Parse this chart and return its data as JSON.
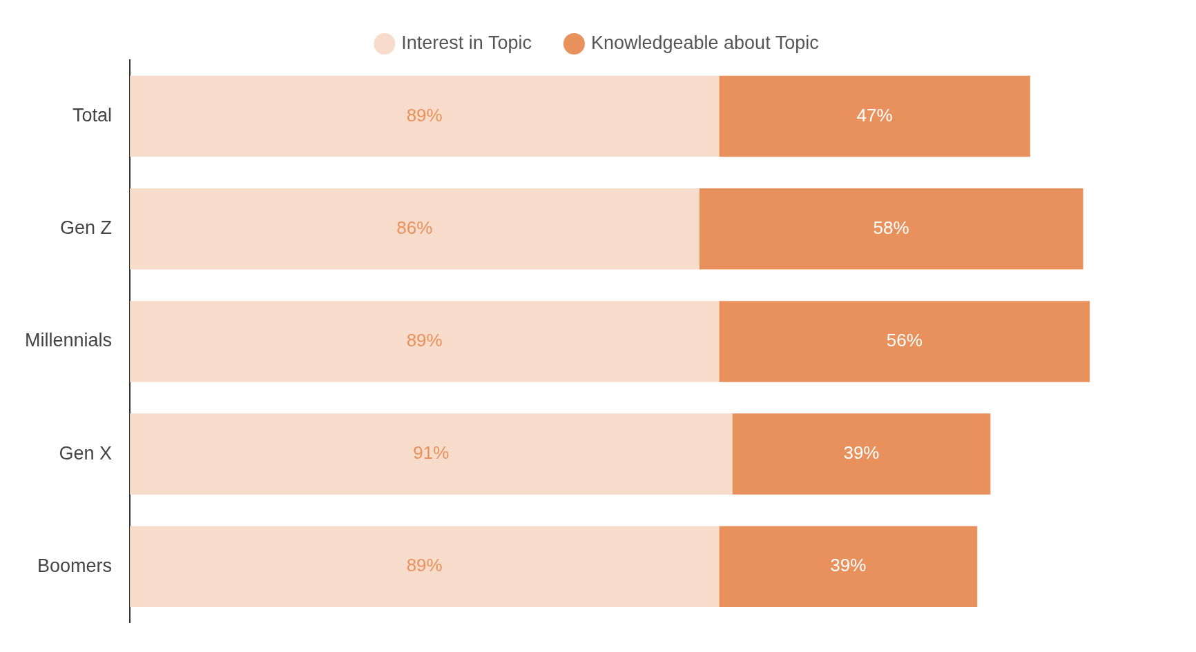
{
  "chart_data": {
    "type": "bar",
    "orientation": "horizontal",
    "stacked": true,
    "legend": "top",
    "grid": false,
    "tick_labels": "y",
    "categories": [
      "Total",
      "Gen Z",
      "Millennials",
      "Gen X",
      "Boomers"
    ],
    "series": [
      {
        "name": "Interest in Topic",
        "color": "#f7dccb",
        "values": [
          89,
          86,
          89,
          91,
          89
        ],
        "value_labels": [
          "89%",
          "86%",
          "89%",
          "91%",
          "89%"
        ]
      },
      {
        "name": "Knowledgeable about Topic",
        "color": "#e8915c",
        "values": [
          47,
          58,
          56,
          39,
          39
        ],
        "value_labels": [
          "47%",
          "58%",
          "56%",
          "39%",
          "39%"
        ]
      }
    ]
  }
}
